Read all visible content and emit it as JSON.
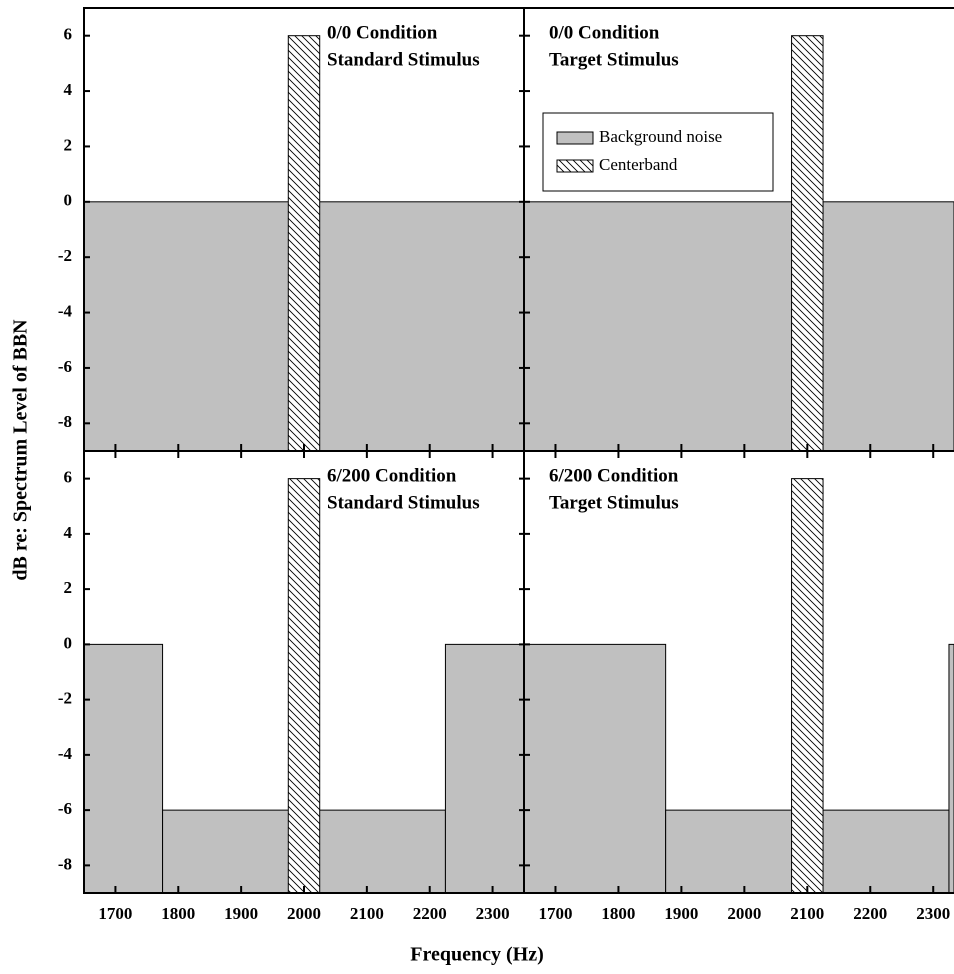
{
  "figure": {
    "xlabel": "Frequency (Hz)",
    "ylabel": "dB re: Spectrum Level of BBN"
  },
  "chart_data": [
    {
      "type": "step",
      "title": "0/0 Condition",
      "subtitle": "Standard Stimulus",
      "xlim": [
        1650,
        2350
      ],
      "ylim": [
        -9,
        7
      ],
      "xticks": [
        1700,
        1800,
        1900,
        2000,
        2100,
        2200,
        2300
      ],
      "yticks": [
        -8,
        -6,
        -4,
        -2,
        0,
        2,
        4,
        6
      ],
      "series": [
        {
          "name": "Background noise",
          "color": "#c0c0c0",
          "bins": [
            1650,
            2350
          ],
          "values": [
            0
          ]
        },
        {
          "name": "Centerband",
          "color": "#ffffff",
          "pattern": "hatch",
          "bins": [
            1975,
            2025
          ],
          "values": [
            6
          ]
        }
      ]
    },
    {
      "type": "step",
      "title": "0/0 Condition",
      "subtitle": "Target Stimulus",
      "xlim": [
        1650,
        2333
      ],
      "ylim": [
        -9,
        7
      ],
      "xticks": [
        1700,
        1800,
        1900,
        2000,
        2100,
        2200,
        2300
      ],
      "yticks": [
        -8,
        -6,
        -4,
        -2,
        0,
        2,
        4,
        6
      ],
      "legend": "upper left",
      "series": [
        {
          "name": "Background noise",
          "color": "#c0c0c0",
          "bins": [
            1650,
            2333
          ],
          "values": [
            0
          ]
        },
        {
          "name": "Centerband",
          "color": "#ffffff",
          "pattern": "hatch",
          "bins": [
            2075,
            2125
          ],
          "values": [
            6
          ]
        }
      ]
    },
    {
      "type": "step",
      "title": "6/200 Condition",
      "subtitle": "Standard Stimulus",
      "xlim": [
        1650,
        2350
      ],
      "ylim": [
        -9,
        7
      ],
      "xticks": [
        1700,
        1800,
        1900,
        2000,
        2100,
        2200,
        2300
      ],
      "yticks": [
        -8,
        -6,
        -4,
        -2,
        0,
        2,
        4,
        6
      ],
      "series": [
        {
          "name": "Background noise",
          "color": "#c0c0c0",
          "bins": [
            1650,
            1775,
            2225,
            2350
          ],
          "values": [
            0,
            -6,
            0
          ]
        },
        {
          "name": "Centerband",
          "color": "#ffffff",
          "pattern": "hatch",
          "bins": [
            1975,
            2025
          ],
          "values": [
            6
          ]
        }
      ]
    },
    {
      "type": "step",
      "title": "6/200 Condition",
      "subtitle": "Target Stimulus",
      "xlim": [
        1650,
        2333
      ],
      "ylim": [
        -9,
        7
      ],
      "xticks": [
        1700,
        1800,
        1900,
        2000,
        2100,
        2200,
        2300
      ],
      "yticks": [
        -8,
        -6,
        -4,
        -2,
        0,
        2,
        4,
        6
      ],
      "series": [
        {
          "name": "Background noise",
          "color": "#c0c0c0",
          "bins": [
            1650,
            1875,
            2325,
            2333
          ],
          "values": [
            0,
            -6,
            0
          ]
        },
        {
          "name": "Centerband",
          "color": "#ffffff",
          "pattern": "hatch",
          "bins": [
            2075,
            2125
          ],
          "values": [
            6
          ]
        }
      ]
    }
  ]
}
